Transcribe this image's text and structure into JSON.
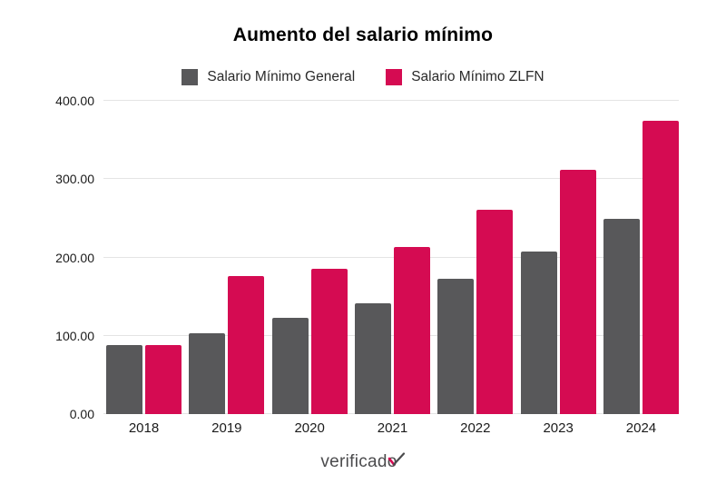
{
  "chart": {
    "title": "Aumento del salario mínimo"
  },
  "chart_data": {
    "type": "bar",
    "title": "Aumento del salario mínimo",
    "categories": [
      "2018",
      "2019",
      "2020",
      "2021",
      "2022",
      "2023",
      "2024"
    ],
    "series": [
      {
        "name": "Salario Mínimo General",
        "color": "#58585a",
        "values": [
          88.36,
          102.68,
          123.22,
          141.7,
          172.87,
          207.44,
          248.93
        ]
      },
      {
        "name": "Salario Mínimo ZLFN",
        "color": "#d50b52",
        "values": [
          88.36,
          176.72,
          185.56,
          213.39,
          260.34,
          312.41,
          374.89
        ]
      }
    ],
    "xlabel": "",
    "ylabel": "",
    "ylim": [
      0,
      400
    ],
    "yticks": [
      "0.00",
      "100.00",
      "200.00",
      "300.00",
      "400.00"
    ],
    "grid": true,
    "legend_position": "top"
  },
  "footer": {
    "logo_text": "verificado",
    "checkmark_icon": "check-through-o"
  },
  "colors": {
    "background": "#ffffff",
    "bar_gray": "#58585a",
    "accent_pink": "#d50b52",
    "gridline": "#e4e4e4",
    "title_text": "#000000",
    "axis_text": "#1b1b1b",
    "logo_text": "#4b4b4d"
  }
}
